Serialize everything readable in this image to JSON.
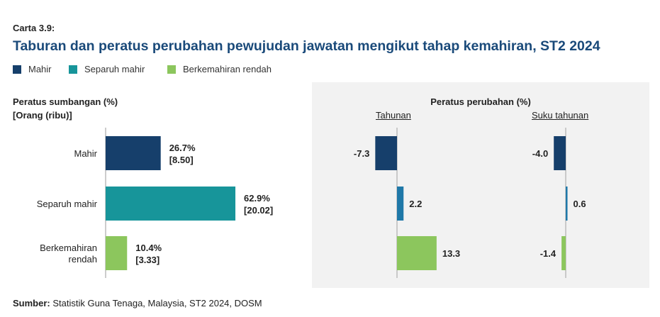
{
  "header": {
    "carta": "Carta 3.9:",
    "title": "Taburan dan peratus perubahan pewujudan jawatan mengikut tahap kemahiran, ST2 2024"
  },
  "legend": [
    {
      "label": "Mahir",
      "color": "#163f6b"
    },
    {
      "label": "Separuh mahir",
      "color": "#17959a"
    },
    {
      "label": "Berkemahiran rendah",
      "color": "#8cc65d"
    }
  ],
  "source": {
    "label": "Sumber:",
    "text": " Statistik Guna Tenaga, Malaysia, ST2 2024, DOSM"
  },
  "chart_data": [
    {
      "type": "bar",
      "orientation": "horizontal",
      "title": "Peratus sumbangan (%)",
      "subtitle": "[Orang (ribu)]",
      "categories": [
        "Mahir",
        "Separuh mahir",
        "Berkemahiran rendah"
      ],
      "values": [
        26.7,
        62.9,
        10.4
      ],
      "people_thousand": [
        8.5,
        20.02,
        3.33
      ],
      "data_labels": [
        "26.7%",
        "62.9%",
        "10.4%"
      ],
      "people_labels": [
        "[8.50]",
        "[20.02]",
        "[3.33]"
      ],
      "colors": [
        "#163f6b",
        "#17959a",
        "#8cc65d"
      ]
    },
    {
      "type": "bar",
      "orientation": "horizontal",
      "group_title": "Peratus perubahan (%)",
      "title": "Tahunan",
      "categories": [
        "Mahir",
        "Separuh mahir",
        "Berkemahiran rendah"
      ],
      "values": [
        -7.3,
        2.2,
        13.3
      ],
      "data_labels": [
        "-7.3",
        "2.2",
        "13.3"
      ],
      "colors": [
        "#163f6b",
        "#1f78a8",
        "#8cc65d"
      ]
    },
    {
      "type": "bar",
      "orientation": "horizontal",
      "title": "Suku tahunan",
      "categories": [
        "Mahir",
        "Separuh mahir",
        "Berkemahiran rendah"
      ],
      "values": [
        -4.0,
        0.6,
        -1.4
      ],
      "data_labels": [
        "-4.0",
        "0.6",
        "-1.4"
      ],
      "colors": [
        "#163f6b",
        "#1f78a8",
        "#8cc65d"
      ]
    }
  ]
}
